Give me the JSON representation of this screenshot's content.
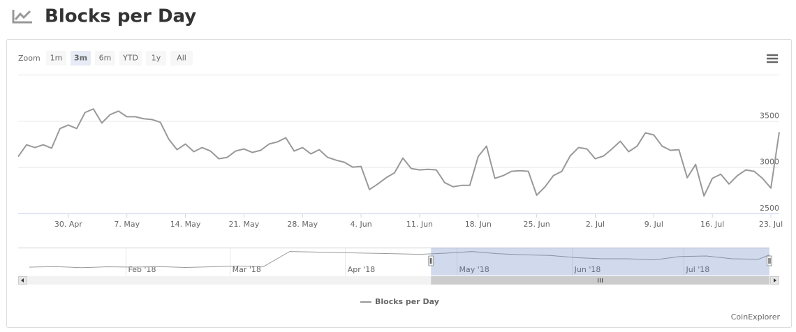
{
  "chart_data": {
    "type": "line",
    "title": "Blocks per Day",
    "zoom": {
      "label": "Zoom",
      "buttons": [
        "1m",
        "3m",
        "6m",
        "YTD",
        "1y",
        "All"
      ],
      "selected": 1
    },
    "x": [
      "2018-04-24",
      "2018-04-25",
      "2018-04-26",
      "2018-04-27",
      "2018-04-28",
      "2018-04-29",
      "2018-04-30",
      "2018-05-01",
      "2018-05-02",
      "2018-05-03",
      "2018-05-04",
      "2018-05-05",
      "2018-05-06",
      "2018-05-07",
      "2018-05-08",
      "2018-05-09",
      "2018-05-10",
      "2018-05-11",
      "2018-05-12",
      "2018-05-13",
      "2018-05-14",
      "2018-05-15",
      "2018-05-16",
      "2018-05-17",
      "2018-05-18",
      "2018-05-19",
      "2018-05-20",
      "2018-05-21",
      "2018-05-22",
      "2018-05-23",
      "2018-05-24",
      "2018-05-25",
      "2018-05-26",
      "2018-05-27",
      "2018-05-28",
      "2018-05-29",
      "2018-05-30",
      "2018-05-31",
      "2018-06-01",
      "2018-06-02",
      "2018-06-03",
      "2018-06-04",
      "2018-06-05",
      "2018-06-06",
      "2018-06-07",
      "2018-06-08",
      "2018-06-09",
      "2018-06-10",
      "2018-06-11",
      "2018-06-12",
      "2018-06-13",
      "2018-06-14",
      "2018-06-15",
      "2018-06-16",
      "2018-06-17",
      "2018-06-18",
      "2018-06-19",
      "2018-06-20",
      "2018-06-21",
      "2018-06-22",
      "2018-06-23",
      "2018-06-24",
      "2018-06-25",
      "2018-06-26",
      "2018-06-27",
      "2018-06-28",
      "2018-06-29",
      "2018-06-30",
      "2018-07-01",
      "2018-07-02",
      "2018-07-03",
      "2018-07-04",
      "2018-07-05",
      "2018-07-06",
      "2018-07-07",
      "2018-07-08",
      "2018-07-09",
      "2018-07-10",
      "2018-07-11",
      "2018-07-12",
      "2018-07-13",
      "2018-07-14",
      "2018-07-15",
      "2018-07-16",
      "2018-07-17",
      "2018-07-18",
      "2018-07-19",
      "2018-07-20",
      "2018-07-21",
      "2018-07-22",
      "2018-07-23",
      "2018-07-24"
    ],
    "series": [
      {
        "name": "Blocks per Day",
        "color": "#999999",
        "values": [
          3114,
          3242,
          3212,
          3242,
          3205,
          3417,
          3455,
          3417,
          3591,
          3629,
          3477,
          3568,
          3606,
          3545,
          3545,
          3523,
          3515,
          3485,
          3303,
          3189,
          3250,
          3167,
          3212,
          3174,
          3091,
          3106,
          3174,
          3197,
          3159,
          3182,
          3250,
          3273,
          3318,
          3174,
          3212,
          3144,
          3189,
          3106,
          3076,
          3053,
          3000,
          3008,
          2758,
          2818,
          2886,
          2939,
          3098,
          2985,
          2970,
          2977,
          2970,
          2833,
          2788,
          2803,
          2803,
          3114,
          3227,
          2879,
          2909,
          2955,
          2962,
          2955,
          2697,
          2788,
          2909,
          2955,
          3121,
          3212,
          3197,
          3091,
          3121,
          3197,
          3280,
          3167,
          3227,
          3371,
          3348,
          3227,
          3182,
          3189,
          2886,
          3030,
          2689,
          2879,
          2924,
          2818,
          2909,
          2970,
          2955,
          2879,
          2773,
          3379
        ]
      }
    ],
    "xlim": [
      "2018-04-24",
      "2018-07-24"
    ],
    "xticks": [
      {
        "value": "2018-04-30",
        "label": "30. Apr"
      },
      {
        "value": "2018-05-07",
        "label": "7. May"
      },
      {
        "value": "2018-05-14",
        "label": "14. May"
      },
      {
        "value": "2018-05-21",
        "label": "21. May"
      },
      {
        "value": "2018-05-28",
        "label": "28. May"
      },
      {
        "value": "2018-06-04",
        "label": "4. Jun"
      },
      {
        "value": "2018-06-11",
        "label": "11. Jun"
      },
      {
        "value": "2018-06-18",
        "label": "18. Jun"
      },
      {
        "value": "2018-06-25",
        "label": "25. Jun"
      },
      {
        "value": "2018-07-02",
        "label": "2. Jul"
      },
      {
        "value": "2018-07-09",
        "label": "9. Jul"
      },
      {
        "value": "2018-07-16",
        "label": "16. Jul"
      },
      {
        "value": "2018-07-23",
        "label": "23. Jul"
      }
    ],
    "ylim": [
      2500,
      4000
    ],
    "yticks": [
      2500,
      3000,
      3500
    ],
    "grid": true,
    "navigator": {
      "x": [
        "2018-01-06",
        "2018-01-13",
        "2018-01-20",
        "2018-01-27",
        "2018-02-03",
        "2018-02-10",
        "2018-02-17",
        "2018-02-24",
        "2018-03-03",
        "2018-03-10",
        "2018-03-17",
        "2018-03-24",
        "2018-03-31",
        "2018-04-07",
        "2018-04-14",
        "2018-04-21",
        "2018-04-28",
        "2018-05-05",
        "2018-05-12",
        "2018-05-19",
        "2018-05-26",
        "2018-06-02",
        "2018-06-09",
        "2018-06-16",
        "2018-06-23",
        "2018-06-30",
        "2018-07-07",
        "2018-07-14",
        "2018-07-21",
        "2018-07-24"
      ],
      "values": [
        2250,
        2300,
        2200,
        2280,
        2250,
        2300,
        2220,
        2280,
        2350,
        2300,
        3650,
        3600,
        3550,
        3500,
        3450,
        3400,
        3500,
        3650,
        3450,
        3350,
        3300,
        3100,
        3000,
        3000,
        2900,
        3200,
        3250,
        3000,
        2950,
        3350
      ],
      "xlim": [
        "2018-01-03",
        "2018-07-24"
      ],
      "ylim": [
        1500,
        4000
      ],
      "xticks": [
        {
          "value": "2018-02-01",
          "label": "Feb '18"
        },
        {
          "value": "2018-03-01",
          "label": "Mar '18"
        },
        {
          "value": "2018-04-01",
          "label": "Apr '18"
        },
        {
          "value": "2018-05-01",
          "label": "May '18"
        },
        {
          "value": "2018-06-01",
          "label": "Jun '18"
        },
        {
          "value": "2018-07-01",
          "label": "Jul '18"
        }
      ]
    },
    "credits": "CoinExplorer"
  }
}
